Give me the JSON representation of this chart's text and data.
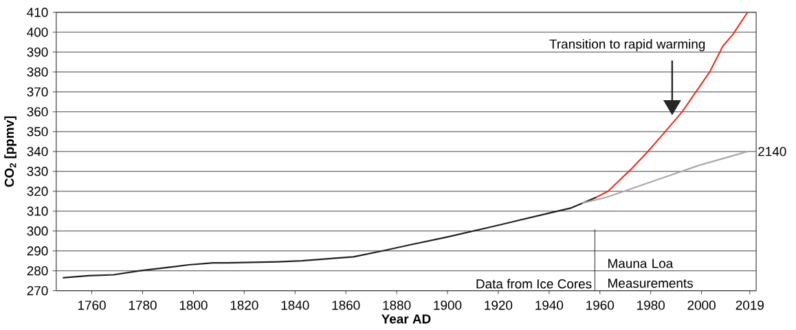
{
  "chart_data": {
    "type": "line",
    "xlabel": "Year AD",
    "ylabel": "CO$_{2}$ [ppmv]",
    "xlim": [
      1746,
      2021.5
    ],
    "xticks": [
      1760,
      1780,
      1800,
      1820,
      1840,
      1860,
      1880,
      1900,
      1920,
      1940,
      1960,
      1980,
      2000,
      2019
    ],
    "ylim": [
      270,
      410
    ],
    "yticks": [
      270,
      280,
      290,
      300,
      310,
      320,
      330,
      340,
      350,
      360,
      370,
      380,
      390,
      400,
      410
    ],
    "grid": "y",
    "marker": "none",
    "line_style": "solid",
    "series": [
      {
        "color": "#231f20",
        "x": [
          1748.6,
          1758.6,
          1768.6,
          1778.9,
          1788.6,
          1798.1,
          1807.8,
          1813.5,
          1833,
          1842.7,
          1852.2,
          1863,
          1874.3,
          1885.1,
          1900,
          1918.6,
          1926.8,
          1940,
          1948.4,
          1958.6
        ],
        "values": [
          276.5,
          277.5,
          278,
          280,
          281.5,
          283,
          284,
          284,
          284.5,
          285,
          286,
          287,
          290,
          293,
          297,
          302.5,
          305,
          309,
          311.5,
          317
        ]
      },
      {
        "color": "#ee3124",
        "x": [
          1958.6,
          1963.2,
          1972.2,
          1978.9,
          1985.7,
          1992.4,
          1997.8,
          2003.2,
          2008.4,
          2012.4,
          2018.1
        ],
        "values": [
          317,
          320,
          331,
          340,
          350,
          360,
          370,
          380,
          393,
          399,
          410
        ]
      },
      {
        "color": "#a7a9ac",
        "x": [
          1953,
          1962.7,
          1980.8,
          1998.9,
          2018.1
        ],
        "values": [
          314,
          317,
          325,
          333,
          340
        ]
      }
    ],
    "ref_lines": [
      {
        "axis": "x",
        "value": 1958,
        "color": "#231f20"
      }
    ],
    "annotations": [
      "Transition to rapid warming",
      {
        "text": "2140",
        "x": 2018.1,
        "y": 340
      },
      "Data from Ice Cores",
      "Mauna Loa Measurements"
    ]
  }
}
